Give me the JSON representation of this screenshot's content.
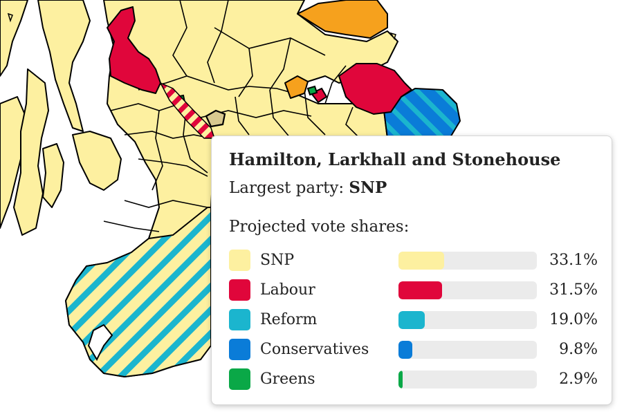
{
  "map": {
    "colors": {
      "sea": "#ffffff",
      "snp": "#fdf0a0",
      "labour": "#e0063b",
      "reform": "#1bb5ce",
      "conservatives": "#0a7cd8",
      "greens": "#0aa847",
      "libdem": "#f6a11d",
      "selected": "#d8c98f",
      "border": "#000000"
    }
  },
  "tooltip": {
    "title": "Hamilton, Larkhall and Stonehouse",
    "largest_label": "Largest party: ",
    "largest_value": "SNP",
    "shares_heading": "Projected vote shares:",
    "parties": [
      {
        "name": "SNP",
        "share_text": "33.1%",
        "share": 33.1,
        "color": "#fdf0a0"
      },
      {
        "name": "Labour",
        "share_text": "31.5%",
        "share": 31.5,
        "color": "#e0063b"
      },
      {
        "name": "Reform",
        "share_text": "19.0%",
        "share": 19.0,
        "color": "#1bb5ce"
      },
      {
        "name": "Conservatives",
        "share_text": "9.8%",
        "share": 9.8,
        "color": "#0a7cd8"
      },
      {
        "name": "Greens",
        "share_text": "2.9%",
        "share": 2.9,
        "color": "#0aa847"
      }
    ]
  }
}
